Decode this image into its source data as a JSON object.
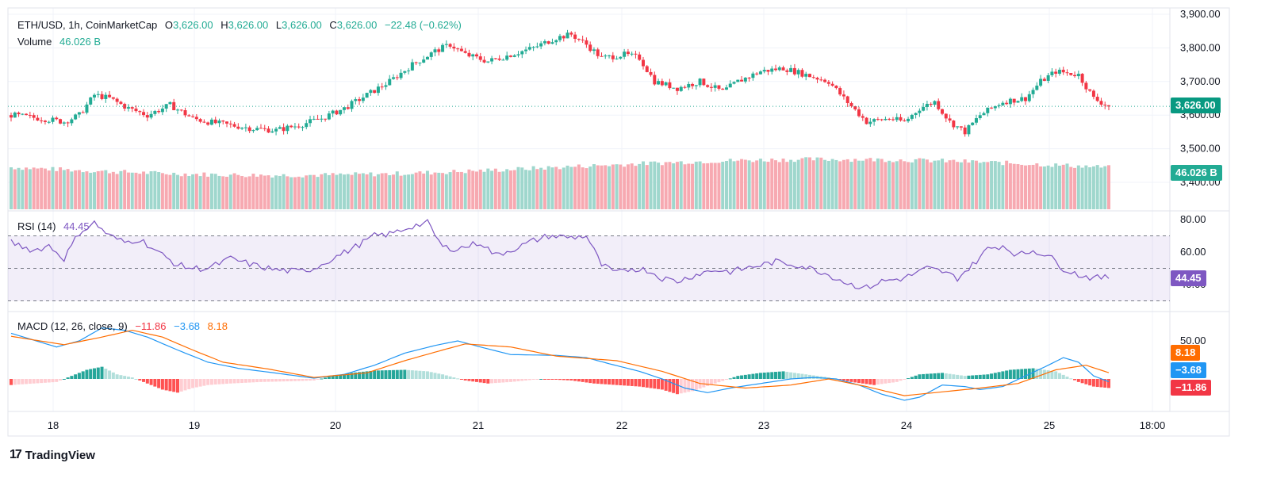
{
  "legend": {
    "symbol": "ETH/USD, 1h, CoinMarketCap",
    "open_label": "O",
    "open": "3,626.00",
    "high_label": "H",
    "high": "3,626.00",
    "low_label": "L",
    "low": "3,626.00",
    "close_label": "C",
    "close": "3,626.00",
    "change": "−22.48 (−0.62%)",
    "volume_label": "Volume",
    "volume": "46.026 B"
  },
  "rsi_legend": {
    "label": "RSI (14)",
    "value": "44.45"
  },
  "macd_legend": {
    "label": "MACD (12, 26, close, 9)",
    "hist": "−11.86",
    "macd": "−3.68",
    "signal": "8.18"
  },
  "badges": {
    "price": "3,626.00",
    "volume": "46.026 B",
    "rsi": "44.45",
    "signal": "8.18",
    "macd": "−3.68",
    "hist": "−11.86"
  },
  "footer": {
    "brand": "TradingView",
    "mark": "17"
  },
  "colors": {
    "up": "#22ab94",
    "down": "#f23645",
    "vol_up": "#9fd7cd",
    "vol_down": "#f7a9b1",
    "rsi": "#7e57c2",
    "macd": "#2196f3",
    "signal": "#ff6d00"
  },
  "chart_data": [
    {
      "type": "candlestick",
      "title": "ETH/USD, 1h, CoinMarketCap",
      "ylim": [
        3380,
        3920
      ],
      "y_ticks": [
        "3,900.00",
        "3,800.00",
        "3,700.00",
        "3,600.00",
        "3,500.00",
        "3,400.00"
      ],
      "y_tick_values": [
        3900,
        3800,
        3700,
        3600,
        3500,
        3400
      ],
      "x_ticks": [
        "18",
        "19",
        "20",
        "21",
        "22",
        "23",
        "24",
        "25",
        "18:00"
      ],
      "close_anchors": [
        [
          0,
          3600
        ],
        [
          8,
          3590
        ],
        [
          14,
          3580
        ],
        [
          18,
          3600
        ],
        [
          22,
          3660
        ],
        [
          26,
          3650
        ],
        [
          31,
          3620
        ],
        [
          36,
          3600
        ],
        [
          42,
          3630
        ],
        [
          48,
          3590
        ],
        [
          52,
          3580
        ],
        [
          58,
          3570
        ],
        [
          64,
          3560
        ],
        [
          70,
          3555
        ],
        [
          76,
          3570
        ],
        [
          82,
          3590
        ],
        [
          88,
          3620
        ],
        [
          94,
          3660
        ],
        [
          100,
          3700
        ],
        [
          106,
          3750
        ],
        [
          112,
          3790
        ],
        [
          116,
          3810
        ],
        [
          120,
          3780
        ],
        [
          126,
          3760
        ],
        [
          132,
          3780
        ],
        [
          138,
          3800
        ],
        [
          144,
          3830
        ],
        [
          148,
          3840
        ],
        [
          152,
          3810
        ],
        [
          156,
          3770
        ],
        [
          162,
          3780
        ],
        [
          166,
          3770
        ],
        [
          170,
          3700
        ],
        [
          176,
          3680
        ],
        [
          182,
          3700
        ],
        [
          188,
          3670
        ],
        [
          192,
          3700
        ],
        [
          198,
          3730
        ],
        [
          204,
          3740
        ],
        [
          210,
          3720
        ],
        [
          216,
          3700
        ],
        [
          220,
          3650
        ],
        [
          226,
          3580
        ],
        [
          232,
          3590
        ],
        [
          236,
          3580
        ],
        [
          240,
          3620
        ],
        [
          244,
          3640
        ],
        [
          248,
          3580
        ],
        [
          252,
          3550
        ],
        [
          256,
          3600
        ],
        [
          262,
          3640
        ],
        [
          268,
          3650
        ],
        [
          272,
          3700
        ],
        [
          276,
          3730
        ],
        [
          282,
          3720
        ],
        [
          286,
          3650
        ],
        [
          290,
          3626
        ]
      ],
      "last_close": 3626
    },
    {
      "type": "bar",
      "title": "Volume",
      "last_value": "46.026 B"
    },
    {
      "type": "line",
      "title": "RSI (14)",
      "ylim": [
        30,
        85
      ],
      "band": [
        30,
        70
      ],
      "middle": 50,
      "y_ticks": [
        "80.00",
        "60.00",
        "40.00"
      ],
      "y_tick_values": [
        80,
        60,
        40
      ],
      "anchors": [
        [
          0,
          66
        ],
        [
          6,
          61
        ],
        [
          10,
          64
        ],
        [
          14,
          56
        ],
        [
          18,
          72
        ],
        [
          22,
          78
        ],
        [
          26,
          70
        ],
        [
          30,
          66
        ],
        [
          34,
          68
        ],
        [
          40,
          58
        ],
        [
          44,
          52
        ],
        [
          48,
          50
        ],
        [
          52,
          50
        ],
        [
          58,
          56
        ],
        [
          64,
          52
        ],
        [
          70,
          49
        ],
        [
          76,
          48
        ],
        [
          80,
          50
        ],
        [
          84,
          55
        ],
        [
          90,
          62
        ],
        [
          96,
          70
        ],
        [
          100,
          71
        ],
        [
          106,
          76
        ],
        [
          110,
          78
        ],
        [
          114,
          63
        ],
        [
          118,
          62
        ],
        [
          124,
          66
        ],
        [
          128,
          58
        ],
        [
          134,
          63
        ],
        [
          138,
          67
        ],
        [
          142,
          70
        ],
        [
          148,
          69
        ],
        [
          152,
          70
        ],
        [
          156,
          52
        ],
        [
          160,
          47
        ],
        [
          164,
          50
        ],
        [
          168,
          49
        ],
        [
          172,
          44
        ],
        [
          176,
          42
        ],
        [
          182,
          47
        ],
        [
          186,
          49
        ],
        [
          190,
          48
        ],
        [
          196,
          51
        ],
        [
          202,
          54
        ],
        [
          208,
          52
        ],
        [
          214,
          48
        ],
        [
          218,
          44
        ],
        [
          222,
          40
        ],
        [
          226,
          38
        ],
        [
          230,
          42
        ],
        [
          236,
          44
        ],
        [
          242,
          50
        ],
        [
          246,
          48
        ],
        [
          250,
          44
        ],
        [
          254,
          52
        ],
        [
          258,
          62
        ],
        [
          262,
          64
        ],
        [
          266,
          58
        ],
        [
          270,
          61
        ],
        [
          274,
          58
        ],
        [
          278,
          50
        ],
        [
          282,
          46
        ],
        [
          286,
          44
        ],
        [
          290,
          44.45
        ]
      ],
      "last_value": 44.45
    },
    {
      "type": "line",
      "title": "MACD (12, 26, close, 9)",
      "ylim": [
        -35,
        75
      ],
      "y_ticks": [
        "50.00"
      ],
      "y_tick_values": [
        50
      ],
      "series": [
        {
          "name": "MACD",
          "anchors": [
            [
              0,
              60
            ],
            [
              12,
              42
            ],
            [
              18,
              50
            ],
            [
              24,
              67
            ],
            [
              30,
              64
            ],
            [
              36,
              55
            ],
            [
              44,
              38
            ],
            [
              52,
              22
            ],
            [
              60,
              14
            ],
            [
              68,
              9
            ],
            [
              80,
              1
            ],
            [
              88,
              6
            ],
            [
              96,
              18
            ],
            [
              104,
              34
            ],
            [
              112,
              44
            ],
            [
              118,
              50
            ],
            [
              124,
              42
            ],
            [
              132,
              32
            ],
            [
              144,
              31
            ],
            [
              152,
              28
            ],
            [
              158,
              20
            ],
            [
              166,
              10
            ],
            [
              172,
              0
            ],
            [
              178,
              -12
            ],
            [
              184,
              -18
            ],
            [
              190,
              -12
            ],
            [
              198,
              -6
            ],
            [
              206,
              0
            ],
            [
              212,
              2
            ],
            [
              218,
              0
            ],
            [
              224,
              -8
            ],
            [
              230,
              -20
            ],
            [
              236,
              -28
            ],
            [
              240,
              -24
            ],
            [
              246,
              -8
            ],
            [
              252,
              -10
            ],
            [
              256,
              -14
            ],
            [
              262,
              -10
            ],
            [
              268,
              4
            ],
            [
              274,
              18
            ],
            [
              278,
              28
            ],
            [
              282,
              22
            ],
            [
              286,
              4
            ],
            [
              290,
              -3.68
            ]
          ],
          "last_value": -3.68
        },
        {
          "name": "Signal",
          "anchors": [
            [
              0,
              56
            ],
            [
              14,
              45
            ],
            [
              24,
              55
            ],
            [
              32,
              64
            ],
            [
              40,
              55
            ],
            [
              48,
              38
            ],
            [
              56,
              22
            ],
            [
              68,
              13
            ],
            [
              80,
              2
            ],
            [
              94,
              8
            ],
            [
              104,
              24
            ],
            [
              114,
              38
            ],
            [
              120,
              46
            ],
            [
              132,
              42
            ],
            [
              144,
              30
            ],
            [
              160,
              24
            ],
            [
              172,
              10
            ],
            [
              182,
              -6
            ],
            [
              194,
              -12
            ],
            [
              206,
              -8
            ],
            [
              216,
              0
            ],
            [
              226,
              -10
            ],
            [
              236,
              -22
            ],
            [
              244,
              -18
            ],
            [
              256,
              -12
            ],
            [
              266,
              -6
            ],
            [
              276,
              12
            ],
            [
              284,
              18
            ],
            [
              290,
              8.18
            ]
          ],
          "last_value": 8.18
        }
      ],
      "histogram_anchors": [
        [
          0,
          -8
        ],
        [
          6,
          -6
        ],
        [
          12,
          -4
        ],
        [
          16,
          4
        ],
        [
          20,
          12
        ],
        [
          24,
          16
        ],
        [
          28,
          6
        ],
        [
          32,
          2
        ],
        [
          36,
          -6
        ],
        [
          40,
          -14
        ],
        [
          44,
          -18
        ],
        [
          48,
          -12
        ],
        [
          52,
          -8
        ],
        [
          58,
          -6
        ],
        [
          66,
          -4
        ],
        [
          74,
          -3
        ],
        [
          80,
          -2
        ],
        [
          84,
          3
        ],
        [
          90,
          8
        ],
        [
          96,
          11
        ],
        [
          104,
          12
        ],
        [
          110,
          10
        ],
        [
          114,
          6
        ],
        [
          120,
          -2
        ],
        [
          126,
          -6
        ],
        [
          132,
          -4
        ],
        [
          140,
          0
        ],
        [
          148,
          -2
        ],
        [
          154,
          -6
        ],
        [
          160,
          -8
        ],
        [
          166,
          -10
        ],
        [
          172,
          -14
        ],
        [
          176,
          -20
        ],
        [
          180,
          -16
        ],
        [
          186,
          -6
        ],
        [
          192,
          4
        ],
        [
          198,
          8
        ],
        [
          204,
          10
        ],
        [
          210,
          6
        ],
        [
          216,
          2
        ],
        [
          222,
          -4
        ],
        [
          228,
          -8
        ],
        [
          234,
          -4
        ],
        [
          240,
          6
        ],
        [
          246,
          8
        ],
        [
          252,
          4
        ],
        [
          258,
          6
        ],
        [
          264,
          12
        ],
        [
          270,
          14
        ],
        [
          276,
          10
        ],
        [
          282,
          -4
        ],
        [
          286,
          -10
        ],
        [
          290,
          -11.86
        ]
      ],
      "last_value": -11.86
    }
  ]
}
